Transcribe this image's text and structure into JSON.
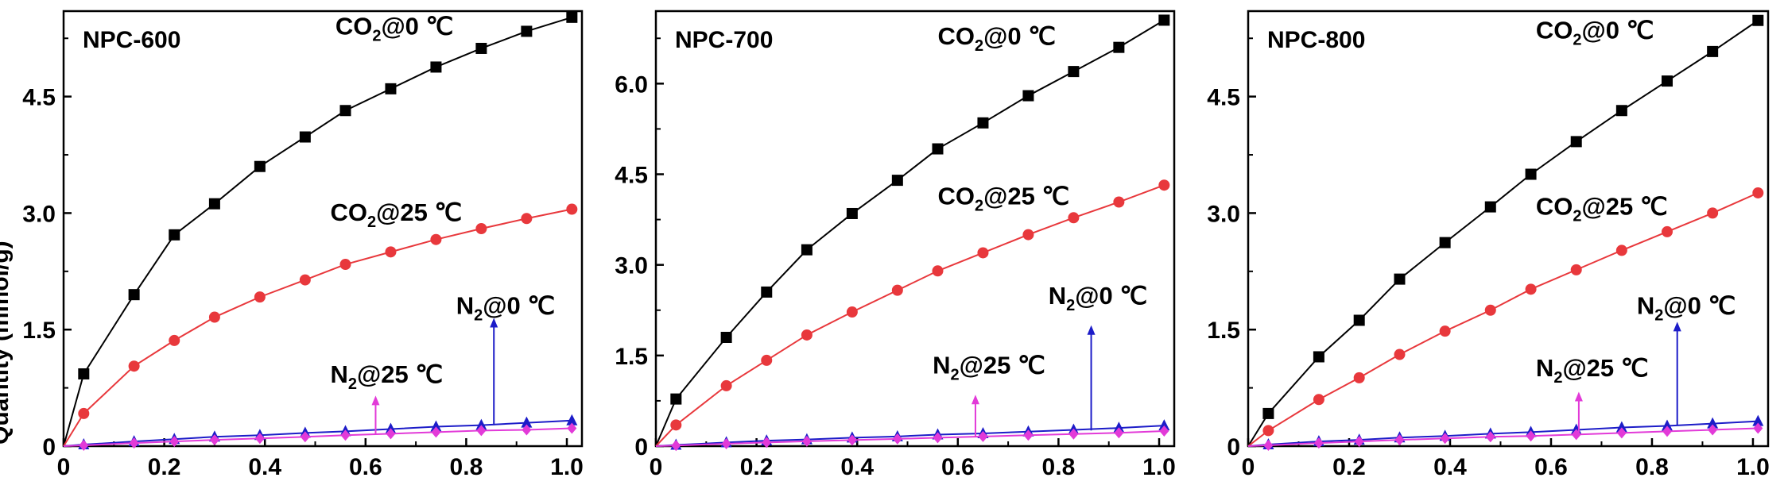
{
  "chart_data": [
    {
      "type": "line",
      "title": "NPC-600",
      "xlabel": "",
      "ylabel": "Quantity (mmol/g)",
      "xlim": [
        0,
        1.03
      ],
      "ylim": [
        0,
        5.6
      ],
      "xticks": [
        0,
        0.2,
        0.4,
        0.6,
        0.8,
        1.0
      ],
      "xtick_labels": [
        "0",
        "0.2",
        "0.4",
        "0.6",
        "0.8",
        "1.0"
      ],
      "yticks": [
        0,
        1.5,
        3.0,
        4.5
      ],
      "ytick_labels": [
        "0",
        "1.5",
        "3.0",
        "4.5"
      ],
      "x": [
        0.04,
        0.14,
        0.22,
        0.3,
        0.39,
        0.48,
        0.56,
        0.65,
        0.74,
        0.83,
        0.92,
        1.01
      ],
      "series": [
        {
          "name": "CO2@0 °C",
          "prefix": "CO",
          "subscript": "2",
          "suffix": "@0 ℃",
          "color": "#000000",
          "marker": "square",
          "values": [
            0.93,
            1.95,
            2.72,
            3.12,
            3.6,
            3.98,
            4.32,
            4.6,
            4.88,
            5.12,
            5.34,
            5.52
          ]
        },
        {
          "name": "CO2@25 °C",
          "prefix": "CO",
          "subscript": "2",
          "suffix": "@25 ℃",
          "color": "#e8383c",
          "marker": "circle",
          "values": [
            0.42,
            1.03,
            1.36,
            1.66,
            1.92,
            2.14,
            2.34,
            2.5,
            2.66,
            2.8,
            2.93,
            3.05
          ]
        },
        {
          "name": "N2@0 °C",
          "prefix": "N",
          "subscript": "2",
          "suffix": "@0 ℃",
          "color": "#1c1cc8",
          "marker": "triangle-up",
          "values": [
            0.02,
            0.06,
            0.09,
            0.12,
            0.14,
            0.17,
            0.19,
            0.22,
            0.25,
            0.27,
            0.3,
            0.33
          ]
        },
        {
          "name": "N2@25 °C",
          "prefix": "N",
          "subscript": "2",
          "suffix": "@25 ℃",
          "color": "#e23ad8",
          "marker": "diamond",
          "values": [
            0.01,
            0.04,
            0.06,
            0.08,
            0.1,
            0.12,
            0.14,
            0.16,
            0.18,
            0.2,
            0.21,
            0.23
          ]
        }
      ]
    },
    {
      "type": "line",
      "title": "NPC-700",
      "xlabel": "",
      "ylabel": "",
      "xlim": [
        0,
        1.03
      ],
      "ylim": [
        0,
        7.2
      ],
      "xticks": [
        0,
        0.2,
        0.4,
        0.6,
        0.8,
        1.0
      ],
      "xtick_labels": [
        "0",
        "0.2",
        "0.4",
        "0.6",
        "0.8",
        "1.0"
      ],
      "yticks": [
        0,
        1.5,
        3.0,
        4.5,
        6.0
      ],
      "ytick_labels": [
        "0",
        "1.5",
        "3.0",
        "4.5",
        "6.0"
      ],
      "x": [
        0.04,
        0.14,
        0.22,
        0.3,
        0.39,
        0.48,
        0.56,
        0.65,
        0.74,
        0.83,
        0.92,
        1.01
      ],
      "series": [
        {
          "name": "CO2@0 °C",
          "prefix": "CO",
          "subscript": "2",
          "suffix": "@0 ℃",
          "color": "#000000",
          "marker": "square",
          "values": [
            0.78,
            1.8,
            2.55,
            3.25,
            3.85,
            4.4,
            4.92,
            5.35,
            5.8,
            6.2,
            6.6,
            7.05
          ]
        },
        {
          "name": "CO2@25 °C",
          "prefix": "CO",
          "subscript": "2",
          "suffix": "@25 ℃",
          "color": "#e8383c",
          "marker": "circle",
          "values": [
            0.35,
            1.0,
            1.42,
            1.84,
            2.22,
            2.58,
            2.9,
            3.2,
            3.5,
            3.78,
            4.04,
            4.32
          ]
        },
        {
          "name": "N2@0 °C",
          "prefix": "N",
          "subscript": "2",
          "suffix": "@0 ℃",
          "color": "#1c1cc8",
          "marker": "triangle-up",
          "values": [
            0.02,
            0.06,
            0.09,
            0.11,
            0.14,
            0.16,
            0.19,
            0.21,
            0.24,
            0.27,
            0.3,
            0.34
          ]
        },
        {
          "name": "N2@25 °C",
          "prefix": "N",
          "subscript": "2",
          "suffix": "@25 ℃",
          "color": "#e23ad8",
          "marker": "diamond",
          "values": [
            0.01,
            0.04,
            0.06,
            0.08,
            0.1,
            0.12,
            0.14,
            0.16,
            0.18,
            0.2,
            0.22,
            0.25
          ]
        }
      ]
    },
    {
      "type": "line",
      "title": "NPC-800",
      "xlabel": "",
      "ylabel": "",
      "xlim": [
        0,
        1.03
      ],
      "ylim": [
        0,
        5.6
      ],
      "xticks": [
        0,
        0.2,
        0.4,
        0.6,
        0.8,
        1.0
      ],
      "xtick_labels": [
        "0",
        "0.2",
        "0.4",
        "0.6",
        "0.8",
        "1.0"
      ],
      "yticks": [
        0,
        1.5,
        3.0,
        4.5
      ],
      "ytick_labels": [
        "0",
        "1.5",
        "3.0",
        "4.5"
      ],
      "x": [
        0.04,
        0.14,
        0.22,
        0.3,
        0.39,
        0.48,
        0.56,
        0.65,
        0.74,
        0.83,
        0.92,
        1.01
      ],
      "series": [
        {
          "name": "CO2@0 °C",
          "prefix": "CO",
          "subscript": "2",
          "suffix": "@0 ℃",
          "color": "#000000",
          "marker": "square",
          "values": [
            0.42,
            1.15,
            1.62,
            2.15,
            2.62,
            3.08,
            3.5,
            3.92,
            4.32,
            4.7,
            5.08,
            5.48
          ]
        },
        {
          "name": "CO2@25 °C",
          "prefix": "CO",
          "subscript": "2",
          "suffix": "@25 ℃",
          "color": "#e8383c",
          "marker": "circle",
          "values": [
            0.2,
            0.6,
            0.88,
            1.18,
            1.48,
            1.75,
            2.02,
            2.27,
            2.52,
            2.76,
            3.0,
            3.26
          ]
        },
        {
          "name": "N2@0 °C",
          "prefix": "N",
          "subscript": "2",
          "suffix": "@0 ℃",
          "color": "#1c1cc8",
          "marker": "triangle-up",
          "values": [
            0.02,
            0.06,
            0.08,
            0.11,
            0.13,
            0.16,
            0.18,
            0.21,
            0.24,
            0.26,
            0.29,
            0.32
          ]
        },
        {
          "name": "N2@25 °C",
          "prefix": "N",
          "subscript": "2",
          "suffix": "@25 ℃",
          "color": "#e23ad8",
          "marker": "diamond",
          "values": [
            0.01,
            0.04,
            0.06,
            0.08,
            0.1,
            0.12,
            0.13,
            0.15,
            0.17,
            0.19,
            0.21,
            0.23
          ]
        }
      ]
    }
  ]
}
